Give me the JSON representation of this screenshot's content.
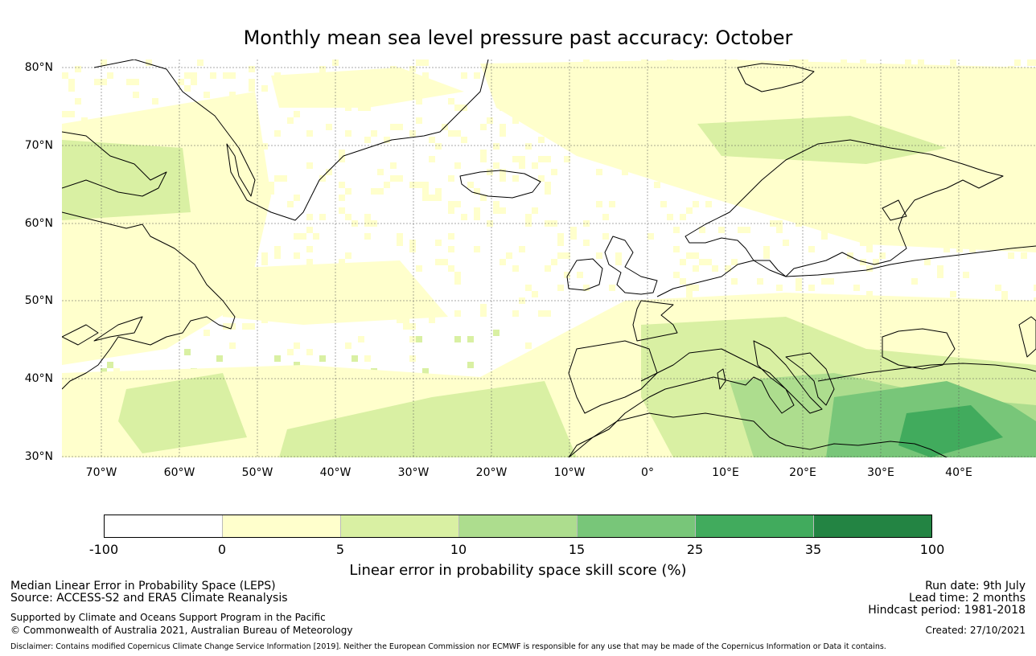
{
  "title": "Monthly mean sea level pressure past accuracy: October",
  "map": {
    "lat_labels": [
      "80°N",
      "70°N",
      "60°N",
      "50°N",
      "40°N",
      "30°N"
    ],
    "lon_labels": [
      "70°W",
      "60°W",
      "50°W",
      "40°W",
      "30°W",
      "20°W",
      "10°W",
      "0°",
      "10°E",
      "20°E",
      "30°E",
      "40°E"
    ],
    "colors": {
      "coastline": "#000000",
      "gridline": "#555555"
    }
  },
  "colorbar": {
    "tick_labels": [
      "-100",
      "0",
      "5",
      "10",
      "15",
      "25",
      "35",
      "100"
    ],
    "colors": [
      "#ffffff",
      "#ffffcc",
      "#d9f0a3",
      "#addd8e",
      "#78c679",
      "#41ab5d",
      "#238443"
    ],
    "label": "Linear error in probability space skill score (%)"
  },
  "footer": {
    "left_line1": "Median Linear Error in Probability Space (LEPS)",
    "left_line2": "Source: ACCESS-S2 and ERA5 Climate Reanalysis",
    "left_line3": "Supported by Climate and Oceans Support Program in the Pacific",
    "left_line4": "© Commonwealth of Australia 2021, Australian Bureau of Meteorology",
    "right_line1": "Run date: 9th July",
    "right_line2": "Lead time: 2 months",
    "right_line3": "Hindcast period: 1981-2018",
    "right_line4": "Created: 27/10/2021",
    "disclaimer": "Disclaimer: Contains modified Copernicus Climate Change Service Information [2019]. Neither the European Commission nor ECMWF is responsible for any use that may be made of the Copernicus Information or Data it contains."
  }
}
